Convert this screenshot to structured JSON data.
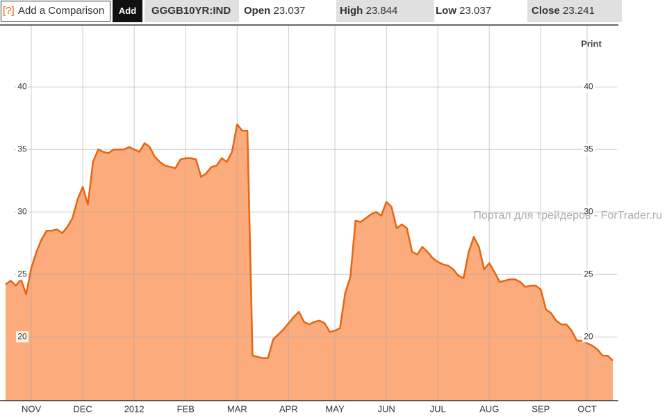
{
  "toolbar": {
    "help": "[?]",
    "comparison": "Add a Comparison",
    "add": "Add",
    "symbol": "GGGB10YR:IND",
    "open_label": "Open",
    "open": "23.037",
    "high_label": "High",
    "high": "23.844",
    "low_label": "Low",
    "low": "23.037",
    "close_label": "Close",
    "close": "23.241"
  },
  "print": "Print",
  "watermark": "Портал для трейдеров - ForTrader.ru",
  "chart_data": {
    "type": "area",
    "categories": [
      null,
      null,
      null,
      null,
      null,
      "NOV",
      null,
      null,
      null,
      null,
      null,
      null,
      null,
      null,
      null,
      "DEC",
      null,
      null,
      null,
      null,
      null,
      null,
      null,
      null,
      null,
      "2012",
      null,
      null,
      null,
      null,
      null,
      null,
      null,
      null,
      null,
      "FEB",
      null,
      null,
      null,
      null,
      null,
      null,
      null,
      null,
      null,
      "MAR",
      null,
      null,
      null,
      null,
      null,
      null,
      null,
      null,
      null,
      "APR",
      null,
      null,
      null,
      null,
      null,
      null,
      null,
      null,
      "MAY",
      null,
      null,
      null,
      null,
      null,
      null,
      null,
      null,
      null,
      "JUN",
      null,
      null,
      null,
      null,
      null,
      null,
      null,
      null,
      null,
      "JUL",
      null,
      null,
      null,
      null,
      null,
      null,
      null,
      null,
      null,
      "AUG",
      null,
      null,
      null,
      null,
      null,
      null,
      null,
      null,
      null,
      "SEP",
      null,
      null,
      null,
      null,
      null,
      null,
      null,
      null,
      "OCT",
      null,
      null,
      null,
      null,
      null
    ],
    "values": [
      24.2,
      24.5,
      24.1,
      24.6,
      23.4,
      25.5,
      26.8,
      27.8,
      28.5,
      28.5,
      28.6,
      28.3,
      28.8,
      29.5,
      31.0,
      32.0,
      30.6,
      34.0,
      35.0,
      34.8,
      34.7,
      35.0,
      35.0,
      35.0,
      35.2,
      35.0,
      34.8,
      35.5,
      35.2,
      34.4,
      34.0,
      33.7,
      33.6,
      33.5,
      34.2,
      34.3,
      34.3,
      34.2,
      32.8,
      33.1,
      33.6,
      33.7,
      34.3,
      34.0,
      34.8,
      37.0,
      36.5,
      36.5,
      18.5,
      18.4,
      18.3,
      18.3,
      19.8,
      20.2,
      20.6,
      21.1,
      21.6,
      22.0,
      21.2,
      21.0,
      21.2,
      21.3,
      21.1,
      20.4,
      20.5,
      20.7,
      23.5,
      24.8,
      29.3,
      29.2,
      29.5,
      29.8,
      30.0,
      29.7,
      30.8,
      30.4,
      28.7,
      29.0,
      28.7,
      26.8,
      26.6,
      27.2,
      26.8,
      26.3,
      26.0,
      25.8,
      25.7,
      25.4,
      24.9,
      24.7,
      26.8,
      28.0,
      27.2,
      25.4,
      25.9,
      25.2,
      24.4,
      24.5,
      24.6,
      24.6,
      24.4,
      24.0,
      24.1,
      24.1,
      23.8,
      22.2,
      21.9,
      21.3,
      21.0,
      21.0,
      20.5,
      19.7,
      19.7,
      19.5,
      19.3,
      19.0,
      18.5,
      18.5,
      18.1
    ],
    "color": "#e8650f",
    "fill": "#fbab7c",
    "ylim": [
      14.9,
      44.9
    ],
    "yticks": [
      20,
      25,
      30,
      35,
      40
    ],
    "grid": true
  }
}
